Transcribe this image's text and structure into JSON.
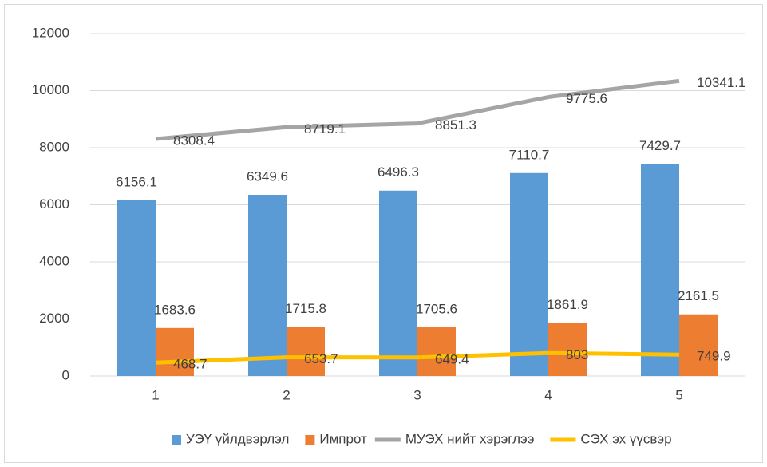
{
  "chart_data": {
    "type": "bar",
    "categories": [
      "1",
      "2",
      "3",
      "4",
      "5"
    ],
    "series": [
      {
        "name": "УЭҮ үйлдвэрлэл",
        "color": "#5b9bd5",
        "kind": "bar",
        "values": [
          6156.1,
          6349.6,
          6496.3,
          7110.7,
          7429.7
        ]
      },
      {
        "name": "Импрот",
        "color": "#ed7d31",
        "kind": "bar",
        "values": [
          1683.6,
          1715.8,
          1705.6,
          1861.9,
          2161.5
        ]
      },
      {
        "name": "МУЭХ нийт хэрэглээ",
        "color": "#a5a5a5",
        "kind": "line",
        "values": [
          8308.4,
          8719.1,
          8851.3,
          9775.6,
          10341.1
        ]
      },
      {
        "name": "СЭХ эх үүсвэр",
        "color": "#ffc000",
        "kind": "line",
        "values": [
          468.7,
          653.7,
          649.4,
          803,
          749.9
        ]
      }
    ],
    "ylim": [
      0,
      12000
    ],
    "yticks": [
      0,
      2000,
      4000,
      6000,
      8000,
      10000,
      12000
    ],
    "grid": true,
    "legend": "bottom"
  }
}
